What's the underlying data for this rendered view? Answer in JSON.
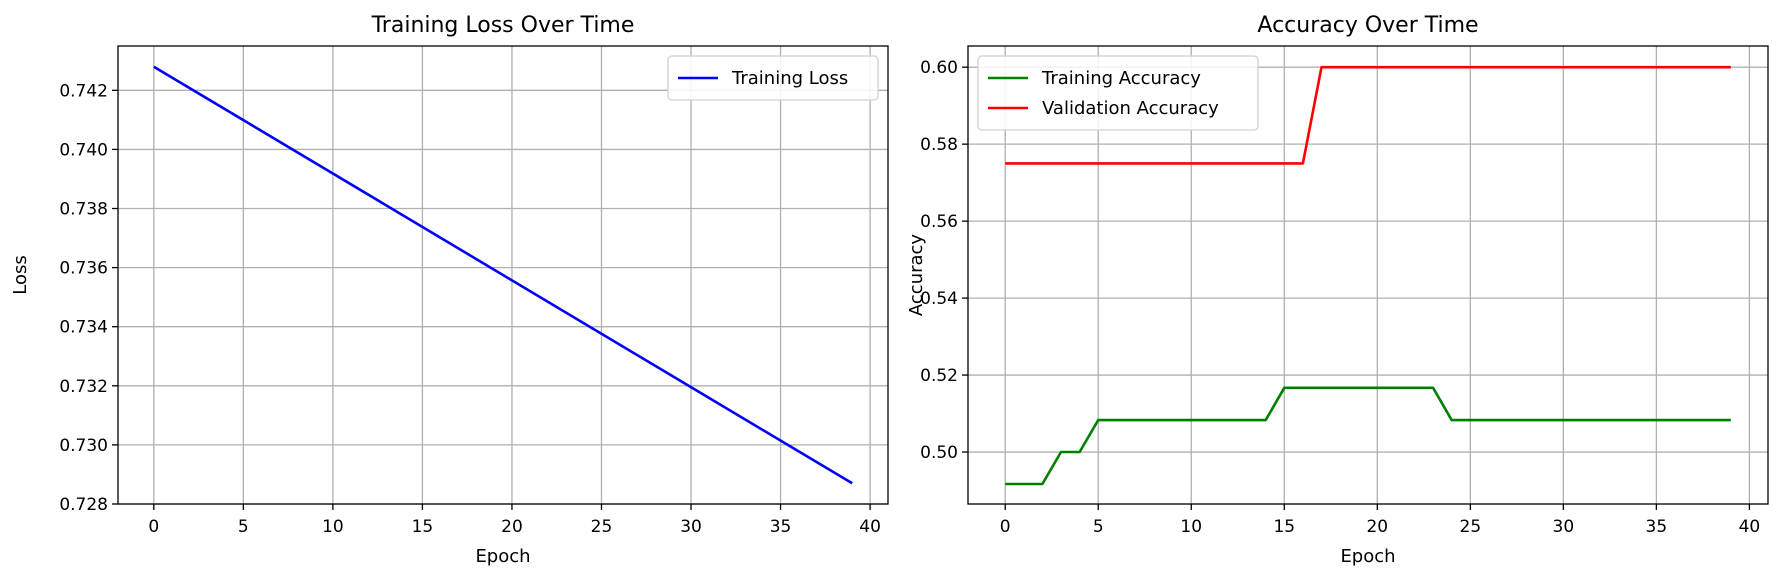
{
  "chart_data": [
    {
      "type": "line",
      "title": "Training Loss Over Time",
      "xlabel": "Epoch",
      "ylabel": "Loss",
      "xlim": [
        -2,
        41
      ],
      "ylim": [
        0.728,
        0.7435
      ],
      "xticks": [
        0,
        5,
        10,
        15,
        20,
        25,
        30,
        35,
        40
      ],
      "yticks": [
        0.728,
        0.73,
        0.732,
        0.734,
        0.736,
        0.738,
        0.74,
        0.742
      ],
      "grid": true,
      "legend_position": "upper right",
      "series": [
        {
          "name": "Training Loss",
          "color": "#0000ff",
          "x": [
            0,
            39
          ],
          "y": [
            0.7428,
            0.7287
          ]
        }
      ]
    },
    {
      "type": "line",
      "title": "Accuracy Over Time",
      "xlabel": "Epoch",
      "ylabel": "Accuracy",
      "xlim": [
        -2,
        41
      ],
      "ylim": [
        0.4865,
        0.6055
      ],
      "xticks": [
        0,
        5,
        10,
        15,
        20,
        25,
        30,
        35,
        40
      ],
      "yticks": [
        0.5,
        0.52,
        0.54,
        0.56,
        0.58,
        0.6
      ],
      "grid": true,
      "legend_position": "upper left",
      "series": [
        {
          "name": "Training Accuracy",
          "color": "#008000",
          "x": [
            0,
            2,
            3,
            4,
            5,
            14,
            15,
            23,
            24,
            39
          ],
          "y": [
            0.4917,
            0.4917,
            0.5,
            0.5,
            0.5083,
            0.5083,
            0.5167,
            0.5167,
            0.5083,
            0.5083
          ]
        },
        {
          "name": "Validation Accuracy",
          "color": "#ff0000",
          "x": [
            0,
            16,
            17,
            39
          ],
          "y": [
            0.575,
            0.575,
            0.6,
            0.6
          ]
        }
      ]
    }
  ]
}
